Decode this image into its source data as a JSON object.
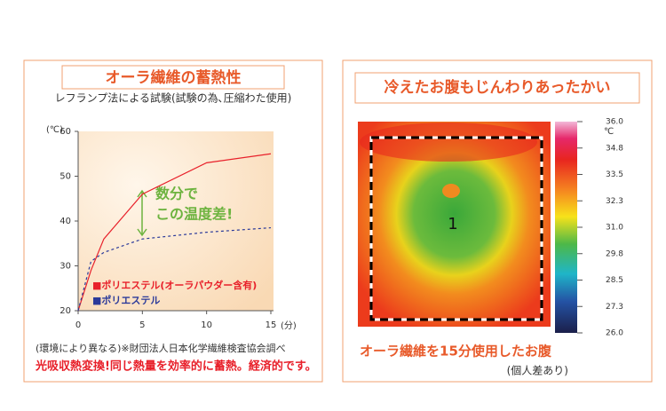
{
  "chart_data": {
    "type": "line",
    "title": "オーラ繊維の蓄熱性",
    "subtitle": "レフランプ法による試験(試験の為､圧縮わた使用)",
    "xlabel": "(分)",
    "ylabel": "(℃)",
    "x": [
      0,
      1,
      2,
      5,
      10,
      15
    ],
    "series": [
      {
        "name": "■ポリエステル(オーラパウダー含有)",
        "color": "#e8202a",
        "dashed": false,
        "values": [
          20,
          29,
          36,
          46,
          53,
          55
        ]
      },
      {
        "name": "■ポリエステル",
        "color": "#2b3a9a",
        "dashed": true,
        "values": [
          20,
          31,
          33,
          36,
          37.5,
          38.5
        ]
      }
    ],
    "xlim": [
      0,
      15
    ],
    "ylim": [
      20,
      60
    ],
    "xticks": [
      0,
      5,
      10,
      15
    ],
    "yticks": [
      20,
      30,
      40,
      50,
      60
    ],
    "annotation": [
      "数分で",
      "この温度差!"
    ],
    "note": "(環境により異なる)※財団法人日本化学繊維検査協会調べ",
    "tagline": "光吸収熱変換!同じ熱量を効率的に蓄熱。経済的です。"
  },
  "thermal": {
    "title": "冷えたお腹もじんわりあったかい",
    "region": "1",
    "unit": "℃",
    "scale": [
      "36.0",
      "34.8",
      "33.5",
      "32.3",
      "31.0",
      "29.8",
      "28.5",
      "27.3",
      "26.0"
    ],
    "caption": "オーラ繊維を15分使用したお腹",
    "remark": "(個人差あり)"
  }
}
